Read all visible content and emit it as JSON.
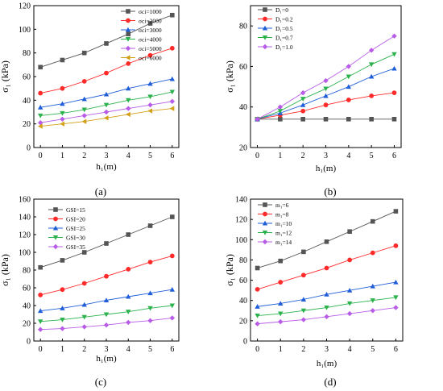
{
  "panel_labels": [
    "(a)",
    "(b)",
    "(c)",
    "(d)"
  ],
  "chart_data": [
    {
      "type": "line",
      "panel": "(a)",
      "xlabel": "h₁(m)",
      "ylabel": "σ₁ (kPa)",
      "xlim": [
        -0.3,
        6.3
      ],
      "ylim": [
        0,
        120
      ],
      "xticks": [
        0,
        1,
        2,
        3,
        4,
        5,
        6
      ],
      "yticks": [
        0,
        20,
        40,
        60,
        80,
        100,
        120
      ],
      "grid": false,
      "legend_position": "top-right",
      "x": [
        0,
        1,
        2,
        3,
        4,
        5,
        6
      ],
      "series": [
        {
          "name": "σci=1000",
          "color": "#555555",
          "marker": "square",
          "values": [
            68,
            74,
            80,
            88,
            96,
            105,
            112
          ]
        },
        {
          "name": "σci=2000",
          "color": "#ff2b2b",
          "marker": "circle",
          "values": [
            46,
            50,
            56,
            63,
            71,
            78,
            84
          ]
        },
        {
          "name": "σci=3000",
          "color": "#1f5ed8",
          "marker": "triangle-up",
          "values": [
            34,
            37,
            41,
            45,
            50,
            54,
            58
          ]
        },
        {
          "name": "σci=4000",
          "color": "#2bb24c",
          "marker": "triangle-down",
          "values": [
            27,
            29,
            32,
            36,
            40,
            43,
            47
          ]
        },
        {
          "name": "σci=5000",
          "color": "#b85ce8",
          "marker": "diamond",
          "values": [
            21,
            24,
            27,
            30,
            33,
            36,
            39
          ]
        },
        {
          "name": "σci=6000",
          "color": "#d4a017",
          "marker": "triangle-left",
          "values": [
            18,
            20,
            22,
            25,
            28,
            31,
            33
          ]
        }
      ]
    },
    {
      "type": "line",
      "panel": "(b)",
      "xlabel": "h₁(m)",
      "ylabel": "σ₁ (kPa)",
      "xlim": [
        -0.3,
        6.3
      ],
      "ylim": [
        20,
        90
      ],
      "xticks": [
        0,
        1,
        2,
        3,
        4,
        5,
        6
      ],
      "yticks": [
        20,
        40,
        60,
        80
      ],
      "grid": false,
      "legend_position": "top-left",
      "x": [
        0,
        1,
        2,
        3,
        4,
        5,
        6
      ],
      "series": [
        {
          "name": "D₁=0",
          "color": "#555555",
          "marker": "square",
          "values": [
            34,
            34,
            34,
            34,
            34,
            34,
            34
          ]
        },
        {
          "name": "D₁=0.2",
          "color": "#ff2b2b",
          "marker": "circle",
          "values": [
            34,
            36,
            38,
            41,
            43.5,
            45.5,
            47
          ]
        },
        {
          "name": "D₁=0.5",
          "color": "#1f5ed8",
          "marker": "triangle-up",
          "values": [
            34,
            37,
            41,
            45.5,
            50,
            55,
            59
          ]
        },
        {
          "name": "D₁=0.7",
          "color": "#2bb24c",
          "marker": "triangle-down",
          "values": [
            34,
            38,
            44,
            49,
            55,
            61,
            66
          ]
        },
        {
          "name": "D₁=1.0",
          "color": "#b85ce8",
          "marker": "diamond",
          "values": [
            34,
            40,
            47,
            53,
            60,
            68,
            75
          ]
        }
      ]
    },
    {
      "type": "line",
      "panel": "(c)",
      "xlabel": "h₁(m)",
      "ylabel": "σ₁ (kPa)",
      "xlim": [
        -0.3,
        6.3
      ],
      "ylim": [
        0,
        160
      ],
      "xticks": [
        0,
        1,
        2,
        3,
        4,
        5,
        6
      ],
      "yticks": [
        0,
        20,
        40,
        60,
        80,
        100,
        120,
        140,
        160
      ],
      "grid": false,
      "legend_position": "top-left",
      "x": [
        0,
        1,
        2,
        3,
        4,
        5,
        6
      ],
      "series": [
        {
          "name": "GSI=15",
          "color": "#555555",
          "marker": "square",
          "values": [
            83,
            91,
            100,
            110,
            120,
            130,
            140
          ]
        },
        {
          "name": "GSI=20",
          "color": "#ff2b2b",
          "marker": "circle",
          "values": [
            52,
            58,
            65,
            73,
            81,
            89,
            96
          ]
        },
        {
          "name": "GSI=25",
          "color": "#1f5ed8",
          "marker": "triangle-up",
          "values": [
            34,
            37,
            41,
            46,
            50,
            54,
            58
          ]
        },
        {
          "name": "GSI=30",
          "color": "#2bb24c",
          "marker": "triangle-down",
          "values": [
            22,
            24,
            27,
            30,
            33,
            37,
            40
          ]
        },
        {
          "name": "GSI=35",
          "color": "#b85ce8",
          "marker": "diamond",
          "values": [
            13,
            14,
            16,
            18,
            21,
            23,
            26
          ]
        }
      ]
    },
    {
      "type": "line",
      "panel": "(d)",
      "xlabel": "h₁(m)",
      "ylabel": "σ₁ (kPa)",
      "xlim": [
        -0.3,
        6.3
      ],
      "ylim": [
        0,
        140
      ],
      "xticks": [
        0,
        1,
        2,
        3,
        4,
        5,
        6
      ],
      "yticks": [
        0,
        20,
        40,
        60,
        80,
        100,
        120,
        140
      ],
      "grid": false,
      "legend_position": "top-left",
      "x": [
        0,
        1,
        2,
        3,
        4,
        5,
        6
      ],
      "series": [
        {
          "name": "m₁=6",
          "color": "#555555",
          "marker": "square",
          "values": [
            72,
            79,
            88,
            98,
            108,
            118,
            128
          ]
        },
        {
          "name": "m₁=8",
          "color": "#ff2b2b",
          "marker": "circle",
          "values": [
            51,
            58,
            65,
            72,
            80,
            87,
            94
          ]
        },
        {
          "name": "m₁=10",
          "color": "#1f5ed8",
          "marker": "triangle-up",
          "values": [
            34,
            37,
            41,
            46,
            50,
            54,
            58
          ]
        },
        {
          "name": "m₁=12",
          "color": "#2bb24c",
          "marker": "triangle-down",
          "values": [
            25,
            27,
            30,
            33,
            37,
            40,
            43
          ]
        },
        {
          "name": "m₁=14",
          "color": "#b85ce8",
          "marker": "diamond",
          "values": [
            17,
            19,
            21,
            24,
            27,
            30,
            33
          ]
        }
      ]
    }
  ]
}
